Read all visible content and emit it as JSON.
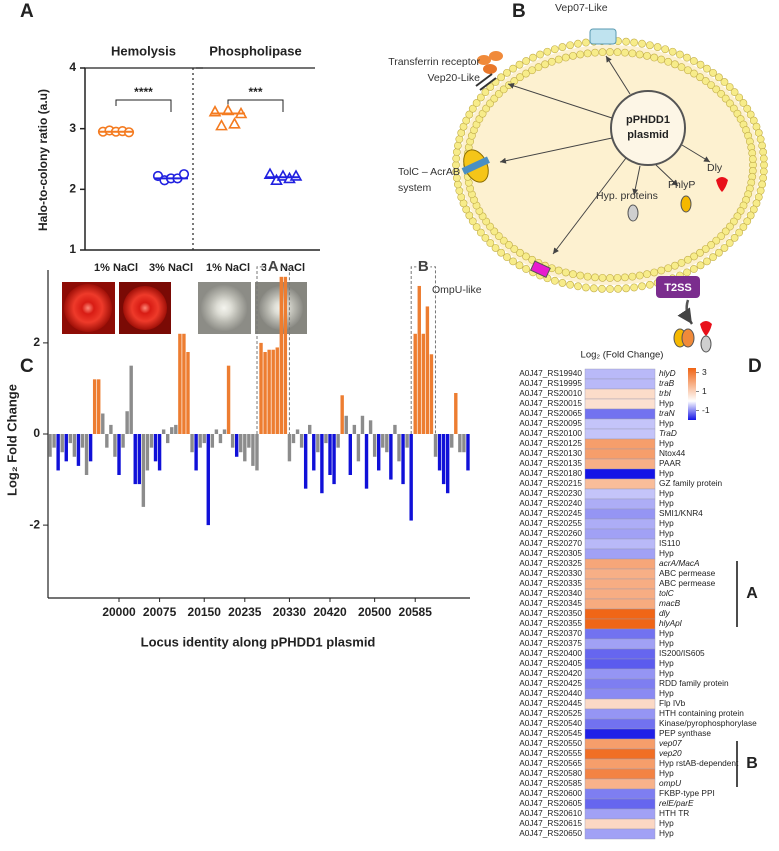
{
  "chart_data": [
    {
      "panel": "A",
      "type": "dot",
      "ylabel": "Halo-to-colony ratio (a.u)",
      "ylim": [
        1,
        4
      ],
      "yticks": [
        1,
        2,
        3,
        4
      ],
      "groups": [
        {
          "name": "Hemolysis",
          "marker": "circle",
          "significance": "****",
          "categories": [
            "1% NaCl",
            "3% NaCl"
          ],
          "colors": [
            "#f47b20",
            "#2020e0"
          ],
          "values": [
            [
              2.95,
              2.97,
              2.95,
              2.96,
              2.94
            ],
            [
              2.22,
              2.15,
              2.18,
              2.18,
              2.25
            ]
          ],
          "medians": [
            2.95,
            2.18
          ]
        },
        {
          "name": "Phospholipase",
          "marker": "triangle",
          "significance": "***",
          "categories": [
            "1% NaCl",
            "3% NaCl"
          ],
          "colors": [
            "#f47b20",
            "#2020e0"
          ],
          "values": [
            [
              3.28,
              3.05,
              3.3,
              3.08,
              3.25
            ],
            [
              2.25,
              2.15,
              2.22,
              2.18,
              2.22
            ]
          ],
          "medians": [
            3.25,
            2.2
          ]
        }
      ]
    },
    {
      "panel": "C",
      "type": "bar",
      "ylabel": "Log₂ Fold Change",
      "xlabel": "Locus identity along pPHDD1 plasmid",
      "ylim": [
        -3.6,
        3.6
      ],
      "yticks": [
        -2,
        0,
        2
      ],
      "categories": [
        null,
        null,
        null,
        null,
        null,
        null,
        null,
        null,
        null,
        null,
        null,
        null,
        null,
        null,
        null,
        null,
        null,
        "20000",
        null,
        null,
        null,
        null,
        null,
        null,
        null,
        null,
        null,
        "20075",
        null,
        null,
        null,
        null,
        null,
        null,
        null,
        null,
        null,
        null,
        "20150",
        null,
        null,
        null,
        null,
        null,
        null,
        null,
        null,
        null,
        "20235",
        null,
        null,
        null,
        null,
        null,
        null,
        null,
        null,
        null,
        null,
        "20330",
        null,
        null,
        null,
        null,
        null,
        null,
        null,
        null,
        null,
        "20420",
        null,
        null,
        null,
        null,
        null,
        null,
        null,
        null,
        null,
        null,
        "20500",
        null,
        null,
        null,
        null,
        null,
        null,
        null,
        null,
        null,
        "20585",
        null,
        null,
        null,
        null,
        null,
        null,
        null,
        null,
        null,
        null,
        null,
        null,
        null
      ],
      "values": [
        -0.5,
        -0.3,
        -0.8,
        -0.4,
        -0.6,
        -0.2,
        -0.5,
        -0.7,
        -0.3,
        -0.9,
        -0.6,
        1.2,
        1.2,
        0.45,
        -0.3,
        0.2,
        -0.5,
        -0.9,
        -0.3,
        0.5,
        1.5,
        -1.1,
        -1.1,
        -1.6,
        -0.8,
        -0.3,
        -0.6,
        -0.8,
        0.1,
        -0.2,
        0.15,
        0.2,
        2.2,
        2.2,
        1.8,
        -0.4,
        -0.8,
        -0.3,
        -0.2,
        -2.0,
        -0.3,
        0.1,
        -0.2,
        0.1,
        1.5,
        -0.3,
        -0.5,
        -0.4,
        -0.6,
        -0.3,
        -0.7,
        -0.8,
        2.0,
        1.8,
        1.85,
        1.85,
        1.9,
        3.45,
        3.45,
        -0.6,
        -0.2,
        0.1,
        -0.3,
        -1.2,
        0.2,
        -0.8,
        -0.4,
        -1.3,
        -0.2,
        -0.9,
        -1.1,
        -0.3,
        0.85,
        0.4,
        -0.9,
        0.2,
        -0.6,
        0.4,
        -1.2,
        0.3,
        -0.5,
        -0.8,
        -0.3,
        -0.4,
        -1.0,
        0.2,
        -0.6,
        -1.1,
        -0.3,
        -1.9,
        2.2,
        3.25,
        2.2,
        2.8,
        1.75,
        -0.5,
        -0.8,
        -1.1,
        -1.3,
        -0.3,
        0.9,
        -0.4,
        -0.4,
        -0.8
      ],
      "colors": [
        "#8c8c8c",
        "#8c8c8c",
        "#1010d8",
        "#8c8c8c",
        "#1010d8",
        "#8c8c8c",
        "#8c8c8c",
        "#1010d8",
        "#8c8c8c",
        "#8c8c8c",
        "#1010d8",
        "#ed7d31",
        "#ed7d31",
        "#8c8c8c",
        "#8c8c8c",
        "#8c8c8c",
        "#8c8c8c",
        "#1010d8",
        "#8c8c8c",
        "#8c8c8c",
        "#8c8c8c",
        "#1010d8",
        "#1010d8",
        "#8c8c8c",
        "#8c8c8c",
        "#8c8c8c",
        "#1010d8",
        "#1010d8",
        "#8c8c8c",
        "#8c8c8c",
        "#8c8c8c",
        "#8c8c8c",
        "#ed7d31",
        "#ed7d31",
        "#ed7d31",
        "#8c8c8c",
        "#1010d8",
        "#8c8c8c",
        "#8c8c8c",
        "#1010d8",
        "#8c8c8c",
        "#8c8c8c",
        "#8c8c8c",
        "#8c8c8c",
        "#ed7d31",
        "#8c8c8c",
        "#1010d8",
        "#8c8c8c",
        "#8c8c8c",
        "#8c8c8c",
        "#8c8c8c",
        "#8c8c8c",
        "#ed7d31",
        "#ed7d31",
        "#ed7d31",
        "#ed7d31",
        "#ed7d31",
        "#ed7d31",
        "#ed7d31",
        "#8c8c8c",
        "#8c8c8c",
        "#8c8c8c",
        "#8c8c8c",
        "#1010d8",
        "#8c8c8c",
        "#1010d8",
        "#8c8c8c",
        "#1010d8",
        "#8c8c8c",
        "#1010d8",
        "#1010d8",
        "#8c8c8c",
        "#ed7d31",
        "#8c8c8c",
        "#1010d8",
        "#8c8c8c",
        "#8c8c8c",
        "#8c8c8c",
        "#1010d8",
        "#8c8c8c",
        "#8c8c8c",
        "#1010d8",
        "#8c8c8c",
        "#8c8c8c",
        "#1010d8",
        "#8c8c8c",
        "#8c8c8c",
        "#1010d8",
        "#8c8c8c",
        "#1010d8",
        "#ed7d31",
        "#ed7d31",
        "#ed7d31",
        "#ed7d31",
        "#ed7d31",
        "#8c8c8c",
        "#1010d8",
        "#1010d8",
        "#1010d8",
        "#8c8c8c",
        "#ed7d31",
        "#8c8c8c",
        "#8c8c8c",
        "#1010d8"
      ],
      "annotations": [
        "A",
        "B"
      ]
    },
    {
      "panel": "D",
      "type": "heatmap",
      "title": "Log₂ (Fold Change)",
      "clim": [
        -2,
        3.5
      ],
      "cticks": [
        3,
        1,
        -1
      ],
      "colormap": [
        "#1414e6",
        "#ffffff",
        "#f06414"
      ],
      "annotations": [
        "A",
        "B"
      ],
      "rows": [
        {
          "locus": "A0J47_RS19940",
          "gene": "hlyD",
          "value": -0.6,
          "italic": true
        },
        {
          "locus": "A0J47_RS19995",
          "gene": "traB",
          "value": -0.6,
          "italic": true
        },
        {
          "locus": "A0J47_RS20010",
          "gene": "trbI",
          "value": 0.8,
          "italic": true
        },
        {
          "locus": "A0J47_RS20015",
          "gene": "Hyp",
          "value": 0.7,
          "italic": false
        },
        {
          "locus": "A0J47_RS20065",
          "gene": "traN",
          "value": -1.2,
          "italic": true
        },
        {
          "locus": "A0J47_RS20095",
          "gene": "Hyp",
          "value": -0.5,
          "italic": false
        },
        {
          "locus": "A0J47_RS20100",
          "gene": "TraD",
          "value": -0.5,
          "italic": true
        },
        {
          "locus": "A0J47_RS20125",
          "gene": "Hyp",
          "value": 2.2,
          "italic": false
        },
        {
          "locus": "A0J47_RS20130",
          "gene": "Ntox44",
          "value": 2.2,
          "italic": false
        },
        {
          "locus": "A0J47_RS20135",
          "gene": "PAAR",
          "value": 1.8,
          "italic": false
        },
        {
          "locus": "A0J47_RS20180",
          "gene": "Hyp",
          "value": -2.0,
          "italic": false
        },
        {
          "locus": "A0J47_RS20215",
          "gene": "GZ family protein",
          "value": 1.5,
          "italic": false
        },
        {
          "locus": "A0J47_RS20230",
          "gene": "Hyp",
          "value": -0.5,
          "italic": false
        },
        {
          "locus": "A0J47_RS20240",
          "gene": "Hyp",
          "value": -0.7,
          "italic": false
        },
        {
          "locus": "A0J47_RS20245",
          "gene": "SMI1/KNR4",
          "value": -0.9,
          "italic": false
        },
        {
          "locus": "A0J47_RS20255",
          "gene": "Hyp",
          "value": -0.7,
          "italic": false
        },
        {
          "locus": "A0J47_RS20260",
          "gene": "Hyp",
          "value": -0.8,
          "italic": false
        },
        {
          "locus": "A0J47_RS20270",
          "gene": "IS110",
          "value": -0.6,
          "italic": false
        },
        {
          "locus": "A0J47_RS20305",
          "gene": "Hyp",
          "value": -0.8,
          "italic": false
        },
        {
          "locus": "A0J47_RS20325",
          "gene": "acrA/MacA",
          "value": 2.0,
          "italic": true
        },
        {
          "locus": "A0J47_RS20330",
          "gene": "ABC permease",
          "value": 1.8,
          "italic": false
        },
        {
          "locus": "A0J47_RS20335",
          "gene": "ABC permease",
          "value": 1.85,
          "italic": false
        },
        {
          "locus": "A0J47_RS20340",
          "gene": "tolC",
          "value": 1.85,
          "italic": true
        },
        {
          "locus": "A0J47_RS20345",
          "gene": "macB",
          "value": 1.9,
          "italic": true
        },
        {
          "locus": "A0J47_RS20350",
          "gene": "dly",
          "value": 3.45,
          "italic": true
        },
        {
          "locus": "A0J47_RS20355",
          "gene": "hlyApl",
          "value": 3.45,
          "italic": true
        },
        {
          "locus": "A0J47_RS20370",
          "gene": "Hyp",
          "value": -1.2,
          "italic": false
        },
        {
          "locus": "A0J47_RS20375",
          "gene": "Hyp",
          "value": -0.8,
          "italic": false
        },
        {
          "locus": "A0J47_RS20400",
          "gene": "IS200/IS605",
          "value": -1.3,
          "italic": false
        },
        {
          "locus": "A0J47_RS20405",
          "gene": "Hyp",
          "value": -1.4,
          "italic": false
        },
        {
          "locus": "A0J47_RS20420",
          "gene": "Hyp",
          "value": -0.9,
          "italic": false
        },
        {
          "locus": "A0J47_RS20425",
          "gene": "RDD family protein",
          "value": -1.1,
          "italic": false
        },
        {
          "locus": "A0J47_RS20440",
          "gene": "Hyp",
          "value": -1.0,
          "italic": false
        },
        {
          "locus": "A0J47_RS20445",
          "gene": "Flp IVb",
          "value": 0.85,
          "italic": false
        },
        {
          "locus": "A0J47_RS20525",
          "gene": "HTH containing protein",
          "value": -0.9,
          "italic": false
        },
        {
          "locus": "A0J47_RS20540",
          "gene": "Kinase/pyrophosphorylase",
          "value": -1.2,
          "italic": false
        },
        {
          "locus": "A0J47_RS20545",
          "gene": "PEP synthase",
          "value": -1.9,
          "italic": false
        },
        {
          "locus": "A0J47_RS20550",
          "gene": "vep07",
          "value": 2.2,
          "italic": true
        },
        {
          "locus": "A0J47_RS20555",
          "gene": "vep20",
          "value": 3.25,
          "italic": true
        },
        {
          "locus": "A0J47_RS20565",
          "gene": "Hyp rstAB-dependent",
          "value": 2.2,
          "italic": false
        },
        {
          "locus": "A0J47_RS20580",
          "gene": "Hyp",
          "value": 2.8,
          "italic": false
        },
        {
          "locus": "A0J47_RS20585",
          "gene": "ompU",
          "value": 1.75,
          "italic": true
        },
        {
          "locus": "A0J47_RS20600",
          "gene": "FKBP-type PPI",
          "value": -1.1,
          "italic": false
        },
        {
          "locus": "A0J47_RS20605",
          "gene": "relE/parE",
          "value": -1.3,
          "italic": true
        },
        {
          "locus": "A0J47_RS20610",
          "gene": "HTH TR",
          "value": -0.8,
          "italic": false
        },
        {
          "locus": "A0J47_RS20615",
          "gene": "Hyp",
          "value": 0.9,
          "italic": false
        },
        {
          "locus": "A0J47_RS20650",
          "gene": "Hyp",
          "value": -0.8,
          "italic": false
        }
      ]
    }
  ],
  "diagram": {
    "panel": "B",
    "plasmid": [
      "pPHDD1",
      "plasmid"
    ],
    "labels": {
      "vep07": "Vep07-Like",
      "transferrin": [
        "Transferrin receptor",
        "Vep20-Like"
      ],
      "tolc": [
        "TolC – AcrAB",
        "system"
      ],
      "ompu": "OmpU-like",
      "dly": "Dly",
      "phlyp": "PhlyP",
      "hyp": "Hyp. proteins",
      "t2ss": "T2SS"
    }
  }
}
